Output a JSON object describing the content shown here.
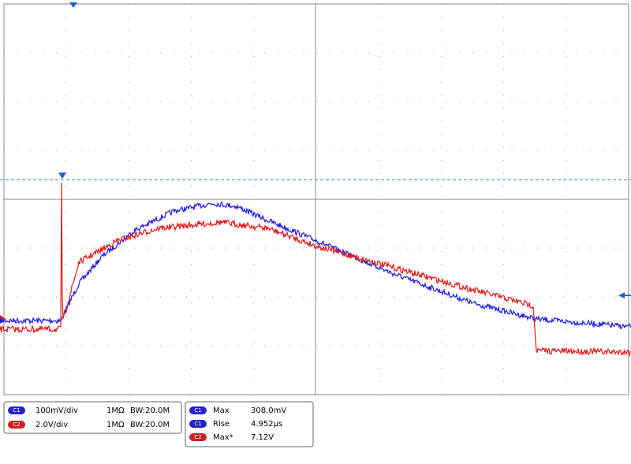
{
  "channels": [
    {
      "badge": "C1",
      "scale": "100mV/div",
      "impedance": "1MΩ",
      "bandwidth": "BW:20.0M"
    },
    {
      "badge": "C2",
      "scale": "2.0V/div",
      "impedance": "1MΩ",
      "bandwidth": "BW:20.0M"
    }
  ],
  "measurements": [
    {
      "badge": "C1",
      "name": "Max",
      "value": "308.0mV"
    },
    {
      "badge": "C1",
      "name": "Rise",
      "value": "4.952µs"
    },
    {
      "badge": "C2",
      "name": "Max*",
      "value": "7.12V"
    }
  ]
}
